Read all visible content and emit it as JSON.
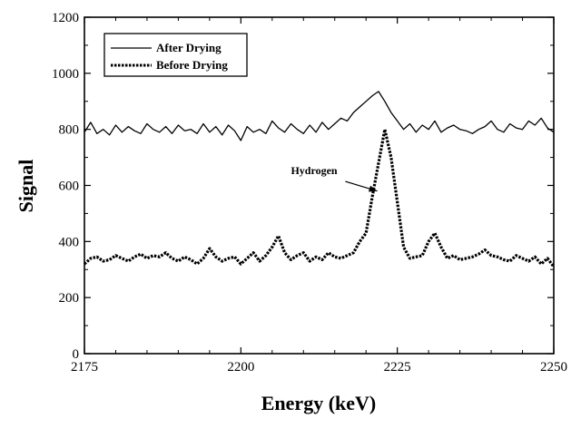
{
  "chart_data": {
    "type": "line",
    "xlabel": "Energy (keV)",
    "ylabel": "Signal",
    "xlim": [
      2175,
      2250
    ],
    "ylim": [
      0,
      1200
    ],
    "x_ticks": [
      2175,
      2200,
      2225,
      2250
    ],
    "y_ticks": [
      0,
      200,
      400,
      600,
      800,
      1000,
      1200
    ],
    "grid": false,
    "legend_position": "top-left",
    "colors": {
      "line": "#000000",
      "axis": "#000000"
    },
    "series": [
      {
        "name": "After Drying",
        "style": "solid",
        "x": [
          2175,
          2176,
          2177,
          2178,
          2179,
          2180,
          2181,
          2182,
          2183,
          2184,
          2185,
          2186,
          2187,
          2188,
          2189,
          2190,
          2191,
          2192,
          2193,
          2194,
          2195,
          2196,
          2197,
          2198,
          2199,
          2200,
          2201,
          2202,
          2203,
          2204,
          2205,
          2206,
          2207,
          2208,
          2209,
          2210,
          2211,
          2212,
          2213,
          2214,
          2215,
          2216,
          2217,
          2218,
          2219,
          2220,
          2221,
          2222,
          2223,
          2224,
          2225,
          2226,
          2227,
          2228,
          2229,
          2230,
          2231,
          2232,
          2233,
          2234,
          2235,
          2236,
          2237,
          2238,
          2239,
          2240,
          2241,
          2242,
          2243,
          2244,
          2245,
          2246,
          2247,
          2248,
          2249,
          2250
        ],
        "values": [
          790,
          825,
          785,
          800,
          780,
          815,
          790,
          810,
          795,
          785,
          820,
          800,
          790,
          810,
          785,
          815,
          795,
          800,
          785,
          820,
          790,
          810,
          780,
          815,
          795,
          760,
          810,
          790,
          800,
          785,
          830,
          805,
          790,
          820,
          800,
          785,
          815,
          790,
          825,
          800,
          820,
          840,
          830,
          860,
          880,
          900,
          920,
          935,
          900,
          860,
          830,
          800,
          820,
          790,
          815,
          800,
          830,
          790,
          805,
          815,
          800,
          795,
          785,
          800,
          810,
          830,
          800,
          790,
          820,
          805,
          800,
          830,
          815,
          840,
          805,
          790
        ]
      },
      {
        "name": "Before Drying",
        "style": "dotted",
        "x": [
          2175,
          2176,
          2177,
          2178,
          2179,
          2180,
          2181,
          2182,
          2183,
          2184,
          2185,
          2186,
          2187,
          2188,
          2189,
          2190,
          2191,
          2192,
          2193,
          2194,
          2195,
          2196,
          2197,
          2198,
          2199,
          2200,
          2201,
          2202,
          2203,
          2204,
          2205,
          2206,
          2207,
          2208,
          2209,
          2210,
          2211,
          2212,
          2213,
          2214,
          2215,
          2216,
          2217,
          2218,
          2219,
          2220,
          2221,
          2222,
          2223,
          2224,
          2225,
          2226,
          2227,
          2228,
          2229,
          2230,
          2231,
          2232,
          2233,
          2234,
          2235,
          2236,
          2237,
          2238,
          2239,
          2240,
          2241,
          2242,
          2243,
          2244,
          2245,
          2246,
          2247,
          2248,
          2249,
          2250
        ],
        "values": [
          320,
          340,
          345,
          330,
          335,
          350,
          340,
          330,
          345,
          355,
          340,
          350,
          345,
          360,
          340,
          330,
          345,
          335,
          320,
          340,
          375,
          345,
          330,
          340,
          345,
          320,
          340,
          360,
          330,
          350,
          380,
          420,
          360,
          335,
          350,
          360,
          330,
          345,
          335,
          360,
          345,
          340,
          350,
          360,
          400,
          430,
          560,
          680,
          800,
          700,
          540,
          380,
          340,
          345,
          350,
          400,
          430,
          380,
          340,
          350,
          335,
          340,
          345,
          355,
          370,
          350,
          345,
          335,
          330,
          350,
          340,
          330,
          345,
          320,
          340,
          310
        ]
      }
    ],
    "annotations": [
      {
        "text": "Hydrogen",
        "label_at": [
          2208,
          640
        ],
        "arrow_to": [
          2221.8,
          580
        ]
      }
    ]
  }
}
